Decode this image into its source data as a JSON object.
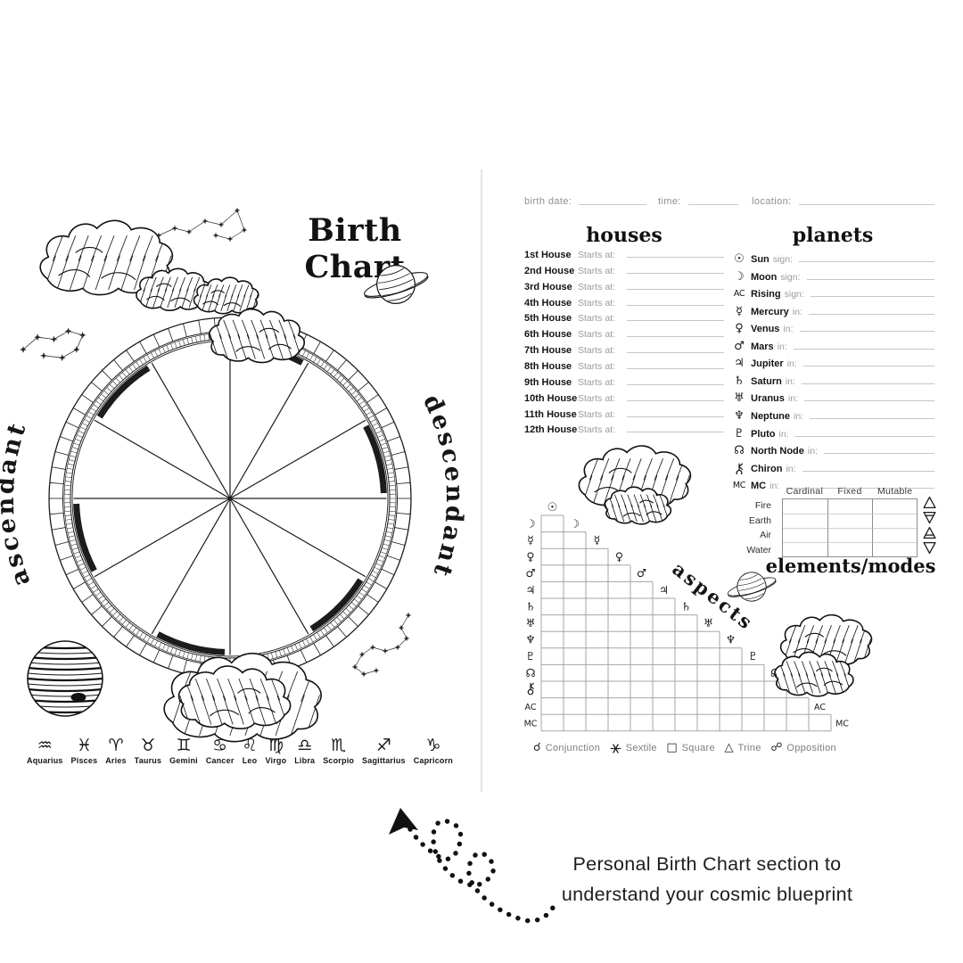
{
  "left_page": {
    "title": "Birth Chart",
    "ascendant": "ascendant",
    "descendant": "descendant",
    "zodiac": [
      {
        "glyph": "♒",
        "name": "Aquarius"
      },
      {
        "glyph": "♓",
        "name": "Pisces"
      },
      {
        "glyph": "♈",
        "name": "Aries"
      },
      {
        "glyph": "♉",
        "name": "Taurus"
      },
      {
        "glyph": "♊",
        "name": "Gemini"
      },
      {
        "glyph": "♋",
        "name": "Cancer"
      },
      {
        "glyph": "♌",
        "name": "Leo"
      },
      {
        "glyph": "♍",
        "name": "Virgo"
      },
      {
        "glyph": "♎",
        "name": "Libra"
      },
      {
        "glyph": "♏",
        "name": "Scorpio"
      },
      {
        "glyph": "♐",
        "name": "Sagittarius"
      },
      {
        "glyph": "♑",
        "name": "Capricorn"
      }
    ]
  },
  "right_page": {
    "fields": {
      "birth_date": "birth date:",
      "time": "time:",
      "location": "location:"
    },
    "houses": {
      "header": "houses",
      "rows": [
        {
          "name": "1st House",
          "suffix": "Starts at:"
        },
        {
          "name": "2nd House",
          "suffix": "Starts at:"
        },
        {
          "name": "3rd House",
          "suffix": "Starts at:"
        },
        {
          "name": "4th House",
          "suffix": "Starts at:"
        },
        {
          "name": "5th House",
          "suffix": "Starts at:"
        },
        {
          "name": "6th House",
          "suffix": "Starts at:"
        },
        {
          "name": "7th House",
          "suffix": "Starts at:"
        },
        {
          "name": "8th House",
          "suffix": "Starts at:"
        },
        {
          "name": "9th House",
          "suffix": "Starts at:"
        },
        {
          "name": "10th House",
          "suffix": "Starts at:"
        },
        {
          "name": "11th House",
          "suffix": "Starts at:"
        },
        {
          "name": "12th House",
          "suffix": "Starts at:"
        }
      ]
    },
    "planets": {
      "header": "planets",
      "rows": [
        {
          "glyph": "☉",
          "name": "Sun",
          "suffix": "sign:"
        },
        {
          "glyph": "☽",
          "name": "Moon",
          "suffix": "sign:"
        },
        {
          "glyph": "AC",
          "name": "Rising",
          "suffix": "sign:"
        },
        {
          "glyph": "☿",
          "name": "Mercury",
          "suffix": "in:"
        },
        {
          "glyph": "♀",
          "name": "Venus",
          "suffix": "in:"
        },
        {
          "glyph": "♂",
          "name": "Mars",
          "suffix": "in:"
        },
        {
          "glyph": "♃",
          "name": "Jupiter",
          "suffix": "in:"
        },
        {
          "glyph": "♄",
          "name": "Saturn",
          "suffix": "in:"
        },
        {
          "glyph": "♅",
          "name": "Uranus",
          "suffix": "in:"
        },
        {
          "glyph": "♆",
          "name": "Neptune",
          "suffix": "in:"
        },
        {
          "glyph": "♇",
          "name": "Pluto",
          "suffix": "in:"
        },
        {
          "glyph": "☊",
          "name": "North Node",
          "suffix": "in:"
        },
        {
          "glyph": "⚷",
          "name": "Chiron",
          "suffix": "in:"
        },
        {
          "glyph": "MC",
          "name": "MC",
          "suffix": "in:"
        }
      ]
    },
    "aspects": {
      "title": "aspects",
      "sun_glyph": "☉",
      "grid_planets": [
        "☽",
        "☿",
        "♀",
        "♂",
        "♃",
        "♄",
        "♅",
        "♆",
        "♇",
        "☊",
        "⚷",
        "AC",
        "MC"
      ],
      "legend": [
        {
          "glyph": "☌",
          "label": "Conjunction"
        },
        {
          "glyph": "⚹",
          "label": "Sextile"
        },
        {
          "glyph": "□",
          "label": "Square"
        },
        {
          "glyph": "△",
          "label": "Trine"
        },
        {
          "glyph": "☍",
          "label": "Opposition"
        }
      ]
    },
    "elements": {
      "title": "elements/modes",
      "columns": [
        "Cardinal",
        "Fixed",
        "Mutable"
      ],
      "rows": [
        {
          "label": "Fire",
          "symbol": "fire-triangle-icon"
        },
        {
          "label": "Earth",
          "symbol": "earth-triangle-icon"
        },
        {
          "label": "Air",
          "symbol": "air-triangle-icon"
        },
        {
          "label": "Water",
          "symbol": "water-triangle-icon"
        }
      ]
    }
  },
  "caption": {
    "line1": "Personal Birth Chart section to",
    "line2": "understand your cosmic blueprint"
  },
  "colors": {
    "ink": "#1a1a1a",
    "light_line": "#c6c6c6",
    "muted_text": "#9b9b9b",
    "grid_line": "#a5a5a5"
  }
}
